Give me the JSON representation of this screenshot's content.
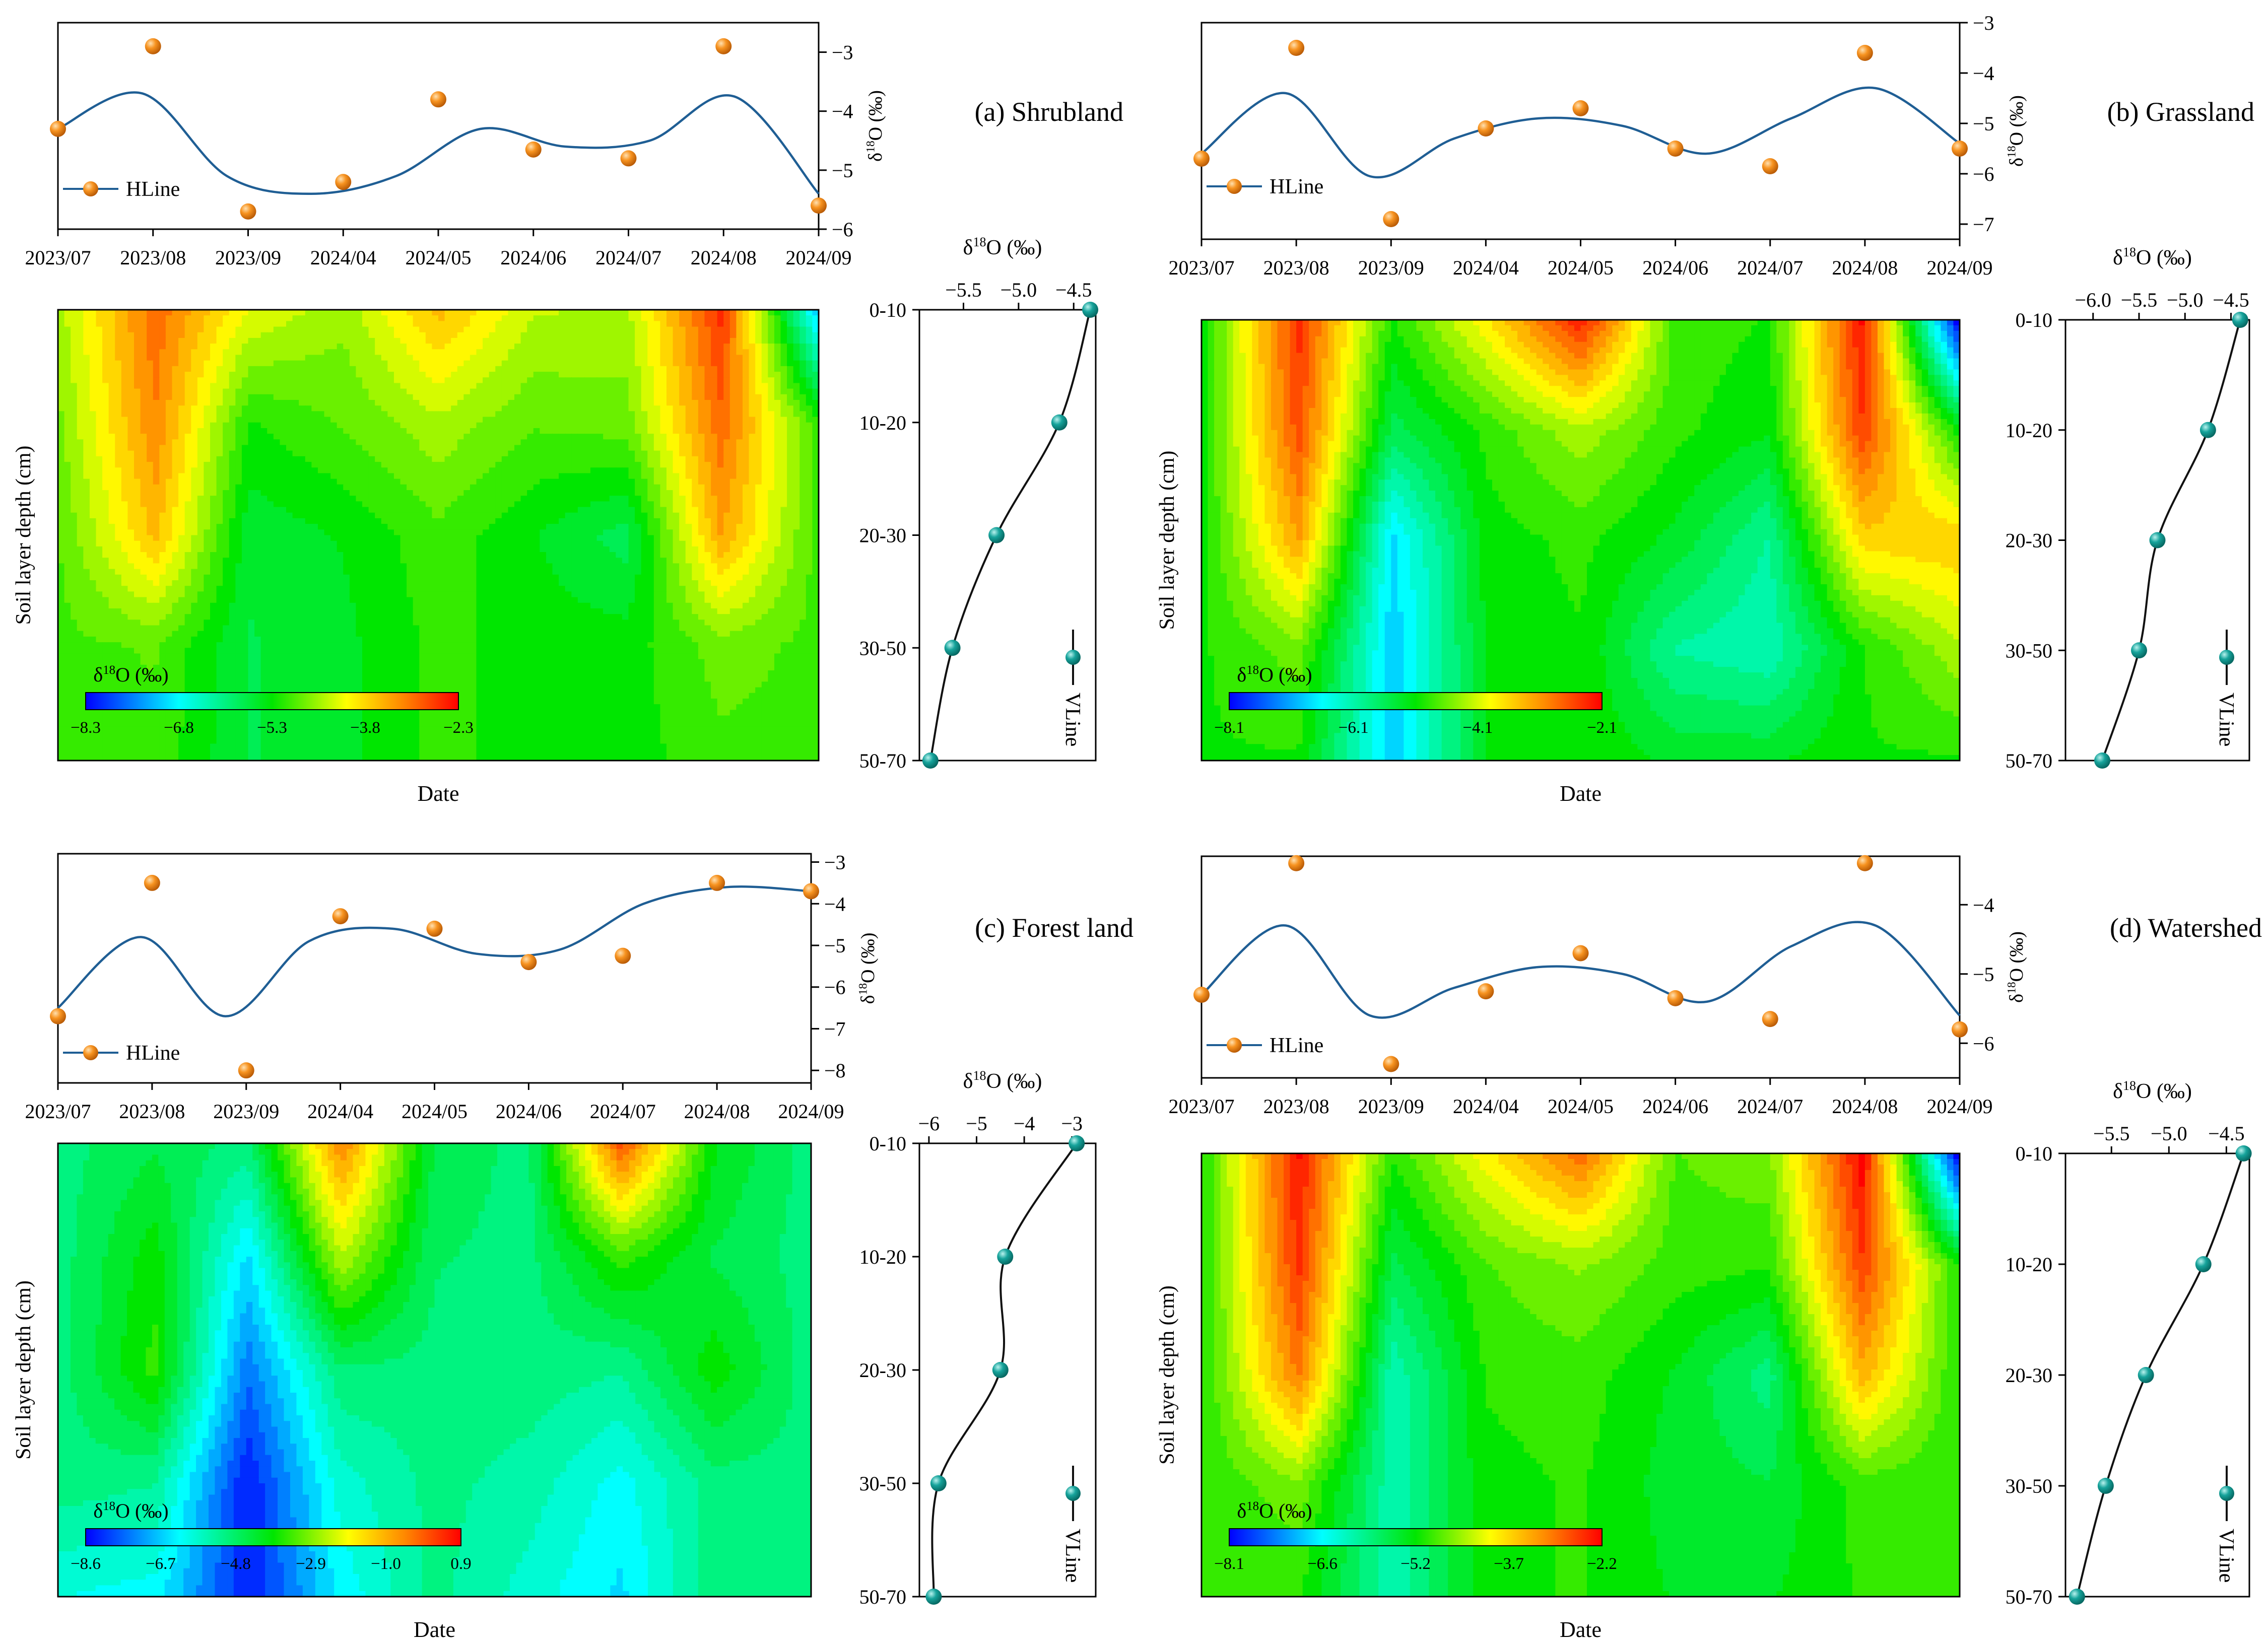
{
  "common": {
    "dates": [
      "2023/07",
      "2023/08",
      "2023/09",
      "2024/04",
      "2024/05",
      "2024/06",
      "2024/07",
      "2024/08",
      "2024/09"
    ],
    "depths": [
      "0-10",
      "10-20",
      "20-30",
      "30-50",
      "50-70"
    ],
    "date_label": "Date",
    "depth_label": "Soil layer depth (cm)",
    "top_axis_label": "δ18O (‰)",
    "colorbar_title": "δ18O (‰)",
    "hline_legend": "HLine",
    "vline_legend": "VLine",
    "colors": {
      "hline": "#1f5e94",
      "marker": "#f28a1c",
      "vline": "#111111",
      "vmarker": "#159e97"
    }
  },
  "chart_data": [
    {
      "id": "a",
      "panel_label": "(a) Shrubland",
      "type": "contour",
      "points": [
        -4.3,
        -2.9,
        -5.7,
        -5.2,
        -3.8,
        -4.65,
        -4.8,
        -2.9,
        -5.6
      ],
      "curve": [
        -4.3,
        -3.7,
        -5.1,
        -5.4,
        -5.1,
        -4.3,
        -4.6,
        -4.5,
        -3.75,
        -5.4
      ],
      "top_ylim": [
        -6,
        -2.5
      ],
      "top_yticks": [
        -6,
        -5,
        -4,
        -3
      ],
      "depth_values": [
        -4.35,
        -4.63,
        -5.2,
        -5.6,
        -5.8
      ],
      "depth_xlim": [
        -5.9,
        -4.3
      ],
      "depth_xticks": [
        -5.5,
        -5.0,
        -4.5
      ],
      "colorbar_ticks": [
        "-8.3",
        "-6.8",
        "-5.3",
        "-3.8",
        "-2.3"
      ],
      "colorbar_range": [
        -8.3,
        -2.3
      ],
      "grid": [
        [
          -4.5,
          -3.0,
          -4.2,
          -4.6,
          -3.6,
          -4.4,
          -4.5,
          -2.6,
          -7.0
        ],
        [
          -4.7,
          -3.2,
          -5.2,
          -4.9,
          -4.5,
          -4.9,
          -4.8,
          -3.0,
          -5.0
        ],
        [
          -4.9,
          -3.6,
          -5.6,
          -5.4,
          -5.0,
          -5.4,
          -5.8,
          -3.4,
          -5.0
        ],
        [
          -5.0,
          -4.9,
          -5.7,
          -5.5,
          -5.1,
          -5.3,
          -5.3,
          -4.8,
          -5.0
        ],
        [
          -5.0,
          -5.0,
          -5.7,
          -5.5,
          -5.1,
          -5.3,
          -5.3,
          -5.0,
          -5.0
        ]
      ]
    },
    {
      "id": "b",
      "panel_label": "(b) Grassland",
      "type": "contour",
      "points": [
        -5.7,
        -3.5,
        -6.9,
        -5.1,
        -4.7,
        -5.5,
        -5.85,
        -3.6,
        -5.5
      ],
      "curve": [
        -5.6,
        -4.4,
        -6.05,
        -5.3,
        -4.9,
        -5.05,
        -5.6,
        -4.9,
        -4.3,
        -5.4
      ],
      "top_ylim": [
        -7.3,
        -3
      ],
      "top_yticks": [
        -7,
        -6,
        -5,
        -4,
        -3
      ],
      "depth_values": [
        -4.4,
        -4.75,
        -5.3,
        -5.5,
        -5.9
      ],
      "depth_xlim": [
        -6.3,
        -4.3
      ],
      "depth_xticks": [
        -6.0,
        -5.5,
        -5.0,
        -4.5
      ],
      "colorbar_ticks": [
        "-8.1",
        "-6.1",
        "-4.1",
        "-2.1"
      ],
      "colorbar_range": [
        -8.1,
        -2.1
      ],
      "grid": [
        [
          -5.0,
          -2.4,
          -5.0,
          -3.8,
          -2.3,
          -4.8,
          -5.0,
          -2.2,
          -8.0
        ],
        [
          -5.0,
          -2.6,
          -5.6,
          -4.9,
          -4.3,
          -4.9,
          -5.2,
          -2.5,
          -5.0
        ],
        [
          -5.0,
          -3.2,
          -6.8,
          -5.1,
          -4.9,
          -5.3,
          -6.0,
          -3.6,
          -3.5
        ],
        [
          -5.0,
          -4.6,
          -6.9,
          -5.2,
          -5.0,
          -6.0,
          -6.2,
          -5.0,
          -4.3
        ],
        [
          -5.0,
          -5.0,
          -6.9,
          -5.2,
          -5.0,
          -5.3,
          -5.3,
          -5.0,
          -5.0
        ]
      ]
    },
    {
      "id": "c",
      "panel_label": "(c) Forest land",
      "type": "contour",
      "points": [
        -6.7,
        -3.5,
        -8.0,
        -4.3,
        -4.6,
        -5.4,
        -5.25,
        -3.5,
        -3.7
      ],
      "curve": [
        -6.5,
        -4.8,
        -6.7,
        -4.9,
        -4.6,
        -5.2,
        -5.1,
        -4.0,
        -3.6,
        -3.7
      ],
      "top_ylim": [
        -8.3,
        -2.8
      ],
      "top_yticks": [
        -8,
        -7,
        -6,
        -5,
        -4,
        -3
      ],
      "depth_values": [
        -2.9,
        -4.4,
        -4.5,
        -5.8,
        -5.9
      ],
      "depth_xlim": [
        -6.2,
        -2.5
      ],
      "depth_xticks": [
        -6,
        -5,
        -4,
        -3
      ],
      "colorbar_ticks": [
        "-8.6",
        "-6.7",
        "-4.8",
        "-2.9",
        "-1.0",
        "0.9"
      ],
      "colorbar_range": [
        -8.6,
        0.9
      ],
      "grid": [
        [
          -5.0,
          -4.5,
          -5.0,
          -0.5,
          -4.5,
          -5.0,
          0.0,
          -4.0,
          -5.0
        ],
        [
          -5.0,
          -3.8,
          -6.5,
          -2.5,
          -4.8,
          -5.0,
          -3.5,
          -4.5,
          -5.0
        ],
        [
          -5.0,
          -3.5,
          -7.5,
          -4.9,
          -5.0,
          -5.0,
          -5.2,
          -3.8,
          -5.0
        ],
        [
          -5.0,
          -5.2,
          -8.4,
          -5.8,
          -5.1,
          -5.4,
          -6.2,
          -5.0,
          -5.0
        ],
        [
          -6.0,
          -6.2,
          -8.4,
          -6.3,
          -5.1,
          -5.8,
          -6.5,
          -5.0,
          -5.0
        ]
      ]
    },
    {
      "id": "d",
      "panel_label": "(d) Watershed",
      "type": "contour",
      "points": [
        -5.3,
        -3.4,
        -6.3,
        -5.25,
        -4.7,
        -5.35,
        -5.65,
        -3.4,
        -5.8
      ],
      "curve": [
        -5.3,
        -4.3,
        -5.6,
        -5.2,
        -4.9,
        -5.0,
        -5.4,
        -4.6,
        -4.3,
        -5.6
      ],
      "top_ylim": [
        -6.5,
        -3.3
      ],
      "top_yticks": [
        -6,
        -5,
        -4
      ],
      "depth_values": [
        -4.35,
        -4.7,
        -5.2,
        -5.55,
        -5.8
      ],
      "depth_xlim": [
        -5.9,
        -4.3
      ],
      "depth_xticks": [
        -5.5,
        -5.0,
        -4.5
      ],
      "colorbar_ticks": [
        "-8.1",
        "-6.6",
        "-5.2",
        "-3.7",
        "-2.2"
      ],
      "colorbar_range": [
        -8.1,
        -2.2
      ],
      "grid": [
        [
          -5.0,
          -2.3,
          -5.0,
          -3.9,
          -2.9,
          -4.8,
          -4.6,
          -2.2,
          -8.0
        ],
        [
          -5.0,
          -2.5,
          -5.6,
          -4.8,
          -4.5,
          -4.9,
          -5.0,
          -2.6,
          -5.0
        ],
        [
          -5.0,
          -3.0,
          -6.2,
          -5.0,
          -4.9,
          -5.3,
          -5.9,
          -3.4,
          -5.0
        ],
        [
          -5.0,
          -4.6,
          -6.2,
          -5.1,
          -5.0,
          -5.4,
          -5.5,
          -4.9,
          -5.0
        ],
        [
          -5.0,
          -5.0,
          -6.2,
          -5.1,
          -5.0,
          -5.3,
          -5.3,
          -5.0,
          -5.0
        ]
      ]
    }
  ]
}
